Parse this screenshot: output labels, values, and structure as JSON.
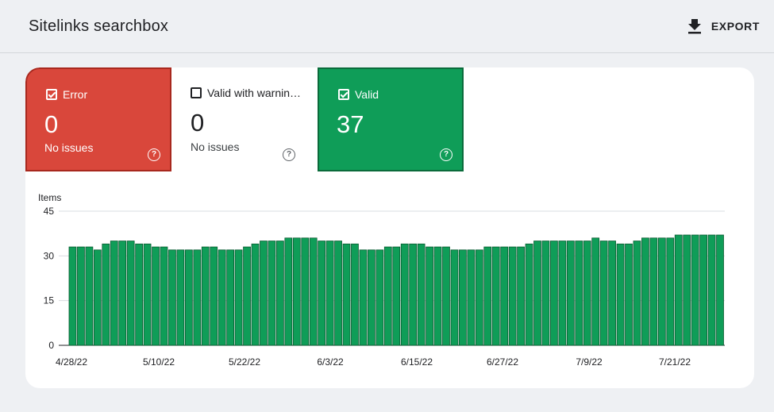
{
  "header": {
    "title": "Sitelinks searchbox",
    "export_label": "EXPORT"
  },
  "tiles": [
    {
      "label": "Error",
      "count": "0",
      "sub": "No issues",
      "checked": true,
      "color": "#d9473b"
    },
    {
      "label": "Valid with warnin…",
      "count": "0",
      "sub": "No issues",
      "checked": false,
      "color": "#ffffff"
    },
    {
      "label": "Valid",
      "count": "37",
      "sub": "",
      "checked": true,
      "color": "#0f9d58"
    }
  ],
  "chart_data": {
    "type": "bar",
    "ylabel": "Items",
    "ylim": [
      0,
      45
    ],
    "yticks": [
      "0",
      "15",
      "30",
      "45"
    ],
    "xticks": [
      "4/28/22",
      "5/10/22",
      "5/22/22",
      "6/3/22",
      "6/15/22",
      "6/27/22",
      "7/9/22",
      "7/21/22"
    ],
    "bar_color": "#0f9d58",
    "series": [
      {
        "values": [
          33,
          33,
          33,
          32,
          34,
          35,
          35,
          35,
          34,
          34,
          33,
          33,
          32,
          32,
          32,
          32,
          33,
          33,
          32,
          32,
          32,
          33,
          34,
          35,
          35,
          35,
          36,
          36,
          36,
          36,
          35,
          35,
          35,
          34,
          34,
          32,
          32,
          32,
          33,
          33,
          34,
          34,
          34,
          33,
          33,
          33,
          32,
          32,
          32,
          32,
          33,
          33,
          33,
          33,
          33,
          34,
          35,
          35,
          35,
          35,
          35,
          35,
          35,
          36,
          35,
          35,
          34,
          34,
          35,
          36,
          36,
          36,
          36,
          37,
          37,
          37,
          37,
          37,
          37
        ]
      }
    ]
  }
}
